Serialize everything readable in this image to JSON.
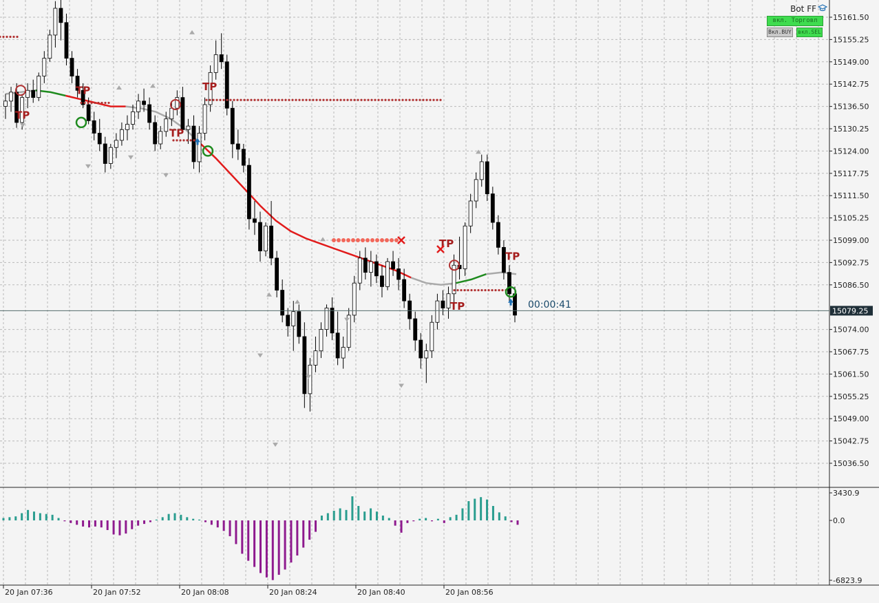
{
  "panel": {
    "title": "Bot FF",
    "btn_trade": "вкл. Торговл",
    "btn_buy": "Вкл.BUY",
    "btn_sell": "вкл.SEL"
  },
  "timer": "00:00:41",
  "current_price_label": "15079.25",
  "colors": {
    "bull_candle": "#ffffff",
    "bear_candle": "#000000",
    "ma_line": "#e11b1b",
    "ma_gray": "#a9a9a9",
    "ma_green": "#1f8b1f",
    "tp_dots": "#b13232",
    "hist_pos": "#2a9d8f",
    "hist_neg": "#8e1a8e",
    "price_tag_bg": "#1f2f38"
  },
  "chart_data": [
    {
      "type": "candlestick",
      "y_ticks": [
        15161.5,
        15155.25,
        15149.0,
        15142.75,
        15136.5,
        15130.25,
        15124.0,
        15117.75,
        15111.5,
        15105.25,
        15099.0,
        15092.75,
        15086.5,
        15074.0,
        15067.75,
        15061.5,
        15055.25,
        15049.0,
        15042.75,
        15036.5
      ],
      "y_tick_labels": [
        "15161.50",
        "15155.25",
        "15149.00",
        "15142.75",
        "15136.50",
        "15130.25",
        "15124.00",
        "15117.75",
        "15111.50",
        "15105.25",
        "15099.00",
        "15092.75",
        "15086.50",
        "15074.00",
        "15067.75",
        "15061.50",
        "15055.25",
        "15049.00",
        "15042.75",
        "15036.50"
      ],
      "x_tick_labels": [
        "20 Jan 07:36",
        "20 Jan 07:52",
        "20 Jan 08:08",
        "20 Jan 08:24",
        "20 Jan 08:40",
        "20 Jan 08:56"
      ],
      "current_price": 15079.25,
      "candles": [
        [
          15136.5,
          15140.0,
          15133.0,
          15138.0
        ],
        [
          15138.0,
          15142.0,
          15135.0,
          15140.5
        ],
        [
          15140.5,
          15143.0,
          15130.5,
          15132.0
        ],
        [
          15132.0,
          15140.0,
          15130.0,
          15139.0
        ],
        [
          15139.0,
          15143.0,
          15136.0,
          15141.0
        ],
        [
          15141.0,
          15144.0,
          15137.5,
          15139.0
        ],
        [
          15139.0,
          15146.0,
          15138.0,
          15145.0
        ],
        [
          15145.0,
          15152.0,
          15143.0,
          15150.0
        ],
        [
          15150.0,
          15158.0,
          15149.0,
          15156.5
        ],
        [
          15156.5,
          15166.0,
          15153.0,
          15164.0
        ],
        [
          15164.0,
          15167.0,
          15155.0,
          15160.0
        ],
        [
          15160.0,
          15162.5,
          15148.0,
          15150.0
        ],
        [
          15150.0,
          15152.0,
          15143.0,
          15145.0
        ],
        [
          15145.0,
          15147.0,
          15139.0,
          15141.0
        ],
        [
          15141.0,
          15143.0,
          15136.0,
          15137.0
        ],
        [
          15137.0,
          15139.0,
          15131.5,
          15132.5
        ],
        [
          15132.5,
          15135.0,
          15127.0,
          15129.0
        ],
        [
          15129.0,
          15133.0,
          15124.0,
          15126.0
        ],
        [
          15126.0,
          15128.0,
          15118.0,
          15120.5
        ],
        [
          15120.5,
          15126.0,
          15119.0,
          15125.0
        ],
        [
          15125.0,
          15129.0,
          15122.0,
          15127.0
        ],
        [
          15127.0,
          15132.0,
          15125.5,
          15130.0
        ],
        [
          15130.0,
          15134.0,
          15127.0,
          15131.5
        ],
        [
          15131.5,
          15137.0,
          15130.0,
          15135.0
        ],
        [
          15135.0,
          15140.0,
          15133.0,
          15138.0
        ],
        [
          15138.0,
          15141.5,
          15135.0,
          15137.0
        ],
        [
          15137.0,
          15139.0,
          15130.0,
          15132.0
        ],
        [
          15132.0,
          15134.0,
          15124.0,
          15126.0
        ],
        [
          15126.0,
          15131.0,
          15124.5,
          15129.5
        ],
        [
          15129.5,
          15135.0,
          15128.0,
          15133.0
        ],
        [
          15133.0,
          15138.0,
          15131.0,
          15136.0
        ],
        [
          15136.0,
          15141.0,
          15134.0,
          15139.0
        ],
        [
          15139.0,
          15142.0,
          15129.0,
          15130.0
        ],
        [
          15130.0,
          15133.0,
          15126.0,
          15131.0
        ],
        [
          15131.0,
          15134.0,
          15119.0,
          15121.0
        ],
        [
          15121.0,
          15131.0,
          15118.0,
          15129.0
        ],
        [
          15129.0,
          15139.0,
          15127.0,
          15137.0
        ],
        [
          15137.0,
          15148.0,
          15135.0,
          15146.0
        ],
        [
          15146.0,
          15155.0,
          15144.0,
          15151.0
        ],
        [
          15151.0,
          15157.0,
          15147.0,
          15149.0
        ],
        [
          15149.0,
          15151.0,
          15134.0,
          15136.0
        ],
        [
          15136.0,
          15138.0,
          15122.0,
          15126.0
        ],
        [
          15126.0,
          15130.0,
          15121.5,
          15124.5
        ],
        [
          15124.5,
          15126.0,
          15118.0,
          15120.0
        ],
        [
          15120.0,
          15122.0,
          15102.0,
          15105.0
        ],
        [
          15105.0,
          15110.0,
          15100.5,
          15104.0
        ],
        [
          15104.0,
          15107.0,
          15093.0,
          15096.0
        ],
        [
          15096.0,
          15104.0,
          15094.5,
          15103.0
        ],
        [
          15103.0,
          15110.0,
          15092.0,
          15094.0
        ],
        [
          15094.0,
          15096.0,
          15083.0,
          15085.0
        ],
        [
          15085.0,
          15088.0,
          15076.0,
          15078.0
        ],
        [
          15078.0,
          15080.0,
          15072.0,
          15075.0
        ],
        [
          15075.0,
          15082.0,
          15068.0,
          15079.0
        ],
        [
          15079.0,
          15081.0,
          15070.0,
          15072.0
        ],
        [
          15072.0,
          15076.0,
          15052.0,
          15056.0
        ],
        [
          15056.0,
          15066.0,
          15051.0,
          15064.0
        ],
        [
          15064.0,
          15072.0,
          15062.0,
          15068.0
        ],
        [
          15068.0,
          15076.0,
          15066.0,
          15074.0
        ],
        [
          15074.0,
          15081.0,
          15072.0,
          15080.0
        ],
        [
          15080.0,
          15083.0,
          15071.0,
          15073.0
        ],
        [
          15073.0,
          15079.0,
          15064.0,
          15066.0
        ],
        [
          15066.0,
          15072.0,
          15063.0,
          15069.0
        ],
        [
          15069.0,
          15080.0,
          15068.0,
          15078.0
        ],
        [
          15078.0,
          15089.0,
          15076.0,
          15087.0
        ],
        [
          15087.0,
          15096.0,
          15085.0,
          15094.0
        ],
        [
          15094.0,
          15097.0,
          15088.0,
          15090.0
        ],
        [
          15090.0,
          15096.0,
          15086.0,
          15093.0
        ],
        [
          15093.0,
          15095.0,
          15087.0,
          15089.0
        ],
        [
          15089.0,
          15092.0,
          15083.0,
          15086.0
        ],
        [
          15086.0,
          15094.0,
          15085.0,
          15093.0
        ],
        [
          15093.0,
          15096.0,
          15089.0,
          15091.0
        ],
        [
          15091.0,
          15094.0,
          15085.0,
          15088.0
        ],
        [
          15088.0,
          15091.0,
          15080.0,
          15082.0
        ],
        [
          15082.0,
          15084.0,
          15074.0,
          15077.0
        ],
        [
          15077.0,
          15079.0,
          15068.0,
          15071.0
        ],
        [
          15071.0,
          15073.0,
          15063.0,
          15066.0
        ],
        [
          15066.0,
          15070.0,
          15059.0,
          15068.0
        ],
        [
          15068.0,
          15078.0,
          15066.0,
          15076.0
        ],
        [
          15076.0,
          15084.0,
          15074.0,
          15082.0
        ],
        [
          15082.0,
          15085.0,
          15078.0,
          15080.0
        ],
        [
          15080.0,
          15086.0,
          15077.0,
          15084.0
        ],
        [
          15084.0,
          15095.0,
          15080.0,
          15092.0
        ],
        [
          15092.0,
          15100.0,
          15088.0,
          15091.0
        ],
        [
          15091.0,
          15104.0,
          15089.0,
          15103.0
        ],
        [
          15103.0,
          15112.0,
          15101.0,
          15110.0
        ],
        [
          15110.0,
          15118.0,
          15108.0,
          15116.0
        ],
        [
          15116.0,
          15123.0,
          15114.0,
          15121.0
        ],
        [
          15121.0,
          15123.0,
          15110.0,
          15112.0
        ],
        [
          15112.0,
          15114.0,
          15102.0,
          15104.0
        ],
        [
          15104.0,
          15106.0,
          15095.0,
          15097.0
        ],
        [
          15097.0,
          15099.0,
          15088.0,
          15090.0
        ],
        [
          15090.0,
          15092.0,
          15082.0,
          15084.0
        ],
        [
          15084.0,
          15086.0,
          15076.0,
          15078.0
        ]
      ],
      "moving_average": [
        15140,
        15140.5,
        15141,
        15140.5,
        15139.5,
        15138.5,
        15137.5,
        15136.5,
        15136.5,
        15136,
        15135,
        15133,
        15130,
        15126,
        15122,
        15117.5,
        15113,
        15108.5,
        15104.5,
        15101.5,
        15099.5,
        15098,
        15096.5,
        15095,
        15093.5,
        15092,
        15090.5,
        15088.5,
        15087,
        15086.5,
        15087,
        15088,
        15089.5,
        15090,
        15089.5
      ],
      "tp_labels": [
        "TP",
        "TP",
        "TP",
        "TP",
        "TP",
        "TP",
        "TP"
      ]
    },
    {
      "type": "histogram",
      "y_tick_labels": [
        "3430.9",
        "0.0",
        "-6823.9"
      ],
      "y_max": 3430.9,
      "y_min": -6823.9,
      "values": [
        300,
        400,
        500,
        900,
        1300,
        1100,
        900,
        800,
        700,
        300,
        -100,
        -300,
        -500,
        -700,
        -800,
        -700,
        -800,
        -1100,
        -1600,
        -1700,
        -1500,
        -1000,
        -600,
        -400,
        -200,
        100,
        400,
        800,
        900,
        700,
        400,
        200,
        100,
        -200,
        -500,
        -800,
        -1200,
        -1800,
        -2700,
        -3800,
        -4600,
        -5300,
        -6000,
        -6500,
        -6800,
        -6200,
        -5600,
        -4800,
        -4000,
        -3100,
        -2200,
        -1300,
        600,
        900,
        1200,
        1500,
        1300,
        3000,
        1800,
        1100,
        1500,
        1100,
        600,
        300,
        -600,
        -1400,
        -300,
        -100,
        200,
        300,
        -100,
        200,
        -300,
        400,
        700,
        1500,
        2400,
        2700,
        2900,
        2600,
        1800,
        1000,
        500,
        -200,
        -500
      ]
    }
  ]
}
